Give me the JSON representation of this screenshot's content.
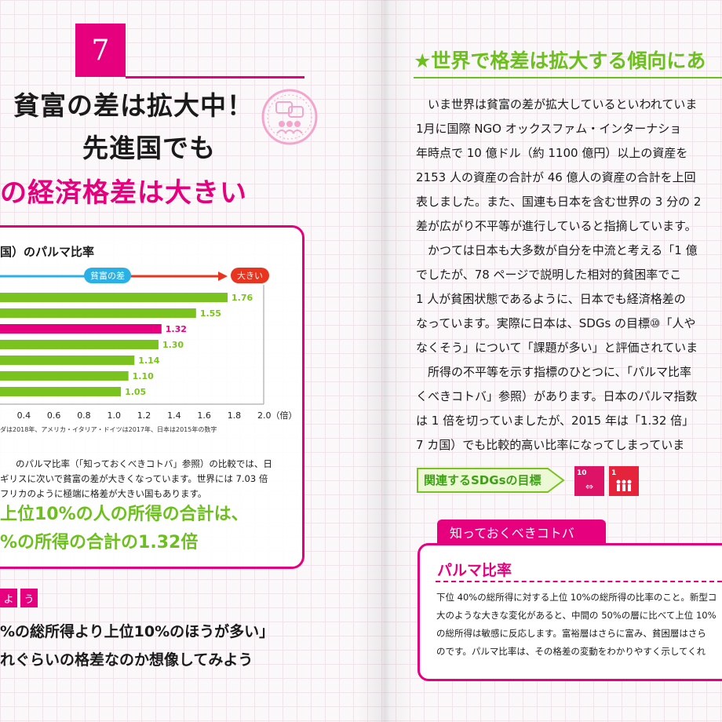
{
  "section_number": "7",
  "title": {
    "line1": "貧富の差は拡大中！",
    "line2": "先進国でも",
    "line3_pink": "の経済格差は大きい"
  },
  "chart_title": "国）のパルマ比率",
  "chart_arrow": {
    "left_label": "貧富の差",
    "right_label": "大きい"
  },
  "chart_data": {
    "type": "bar",
    "orientation": "horizontal",
    "values": [
      1.76,
      1.55,
      1.32,
      1.3,
      1.14,
      1.1,
      1.05
    ],
    "value_labels": [
      "1.76",
      "1.55",
      "1.32",
      "1.30",
      "1.14",
      "1.10",
      "1.05"
    ],
    "xlim": [
      0,
      2.0
    ],
    "xticks": [
      "0.4",
      "0.6",
      "0.8",
      "1.0",
      "1.2",
      "1.4",
      "1.6",
      "1.8",
      "2.0（倍）"
    ],
    "highlight_index": 2,
    "bar_color": "#7ac31f",
    "highlight_color": "#e6007e"
  },
  "chart_note": "ダは2018年、アメリカ・イタリア・ドイツは2017年、日本は2015年の数字",
  "body_left": [
    "のパルマ比率（「知っておくべきコトバ」参照）の比較では、日",
    "ギリスに次いで貧富の差が大きくなっています。世界には 7.03 倍",
    "フリカのように極端に格差が大きい国もあります。"
  ],
  "big_green": [
    "上位10%の人の所得の合計は、",
    "%の所得の合計の1.32倍"
  ],
  "tag_chars": [
    "よ",
    "う"
  ],
  "quote": [
    "%の総所得より上位10%のほうが多い」",
    "れぐらいの格差なのか想像してみよう"
  ],
  "right_heading": "★世界で格差は拡大する傾向にあ",
  "right_body": [
    "　いま世界は貧富の差が拡大しているといわれていま",
    "1月に国際 NGO オックスファム・インターナショ",
    "年時点で 10 億ドル（約 1100 億円）以上の資産を",
    "2153 人の資産の合計が 46 億人の資産の合計を上回",
    "表しました。また、国連も日本を含む世界の 3 分の 2",
    "差が広がり不平等が進行していると指摘しています。",
    "　かつては日本も大多数が自分を中流と考える「1 億",
    "でしたが、78 ページで説明した相対的貧困率でこ",
    "1 人が貧困状態であるように、日本でも経済格差の",
    "なっています。実際に日本は、SDGs の目標⑩「人や",
    "なくそう」について「課題が多い」と評価されていま",
    "　所得の不平等を示す指標のひとつに、「パルマ比率",
    "くべきコトバ」参照）があります。日本のパルマ指数",
    "は 1 倍を切っていましたが、2015 年は「1.32 倍」",
    "7 カ国）でも比較的高い比率になってしまっていま"
  ],
  "sdg_label": "関連するSDGsの目標",
  "kotoba_tab": "知っておくべきコトバ",
  "kotoba_title": "パルマ比率",
  "kotoba_body": [
    "下位 40%の総所得に対する上位 10%の総所得の比率のこと。新型コ",
    "大のような大きな変化があると、中間の 50%の層に比べて上位 10%",
    "の総所得は敏感に反応します。富裕層はさらに富み、貧困層はさら",
    "のです。パルマ比率は、その格差の変動をわかりやすく示してくれ"
  ],
  "colors": {
    "pink": "#e6007e",
    "green": "#6cbf1c",
    "blue": "#2ab0e4",
    "red": "#e8351f"
  }
}
